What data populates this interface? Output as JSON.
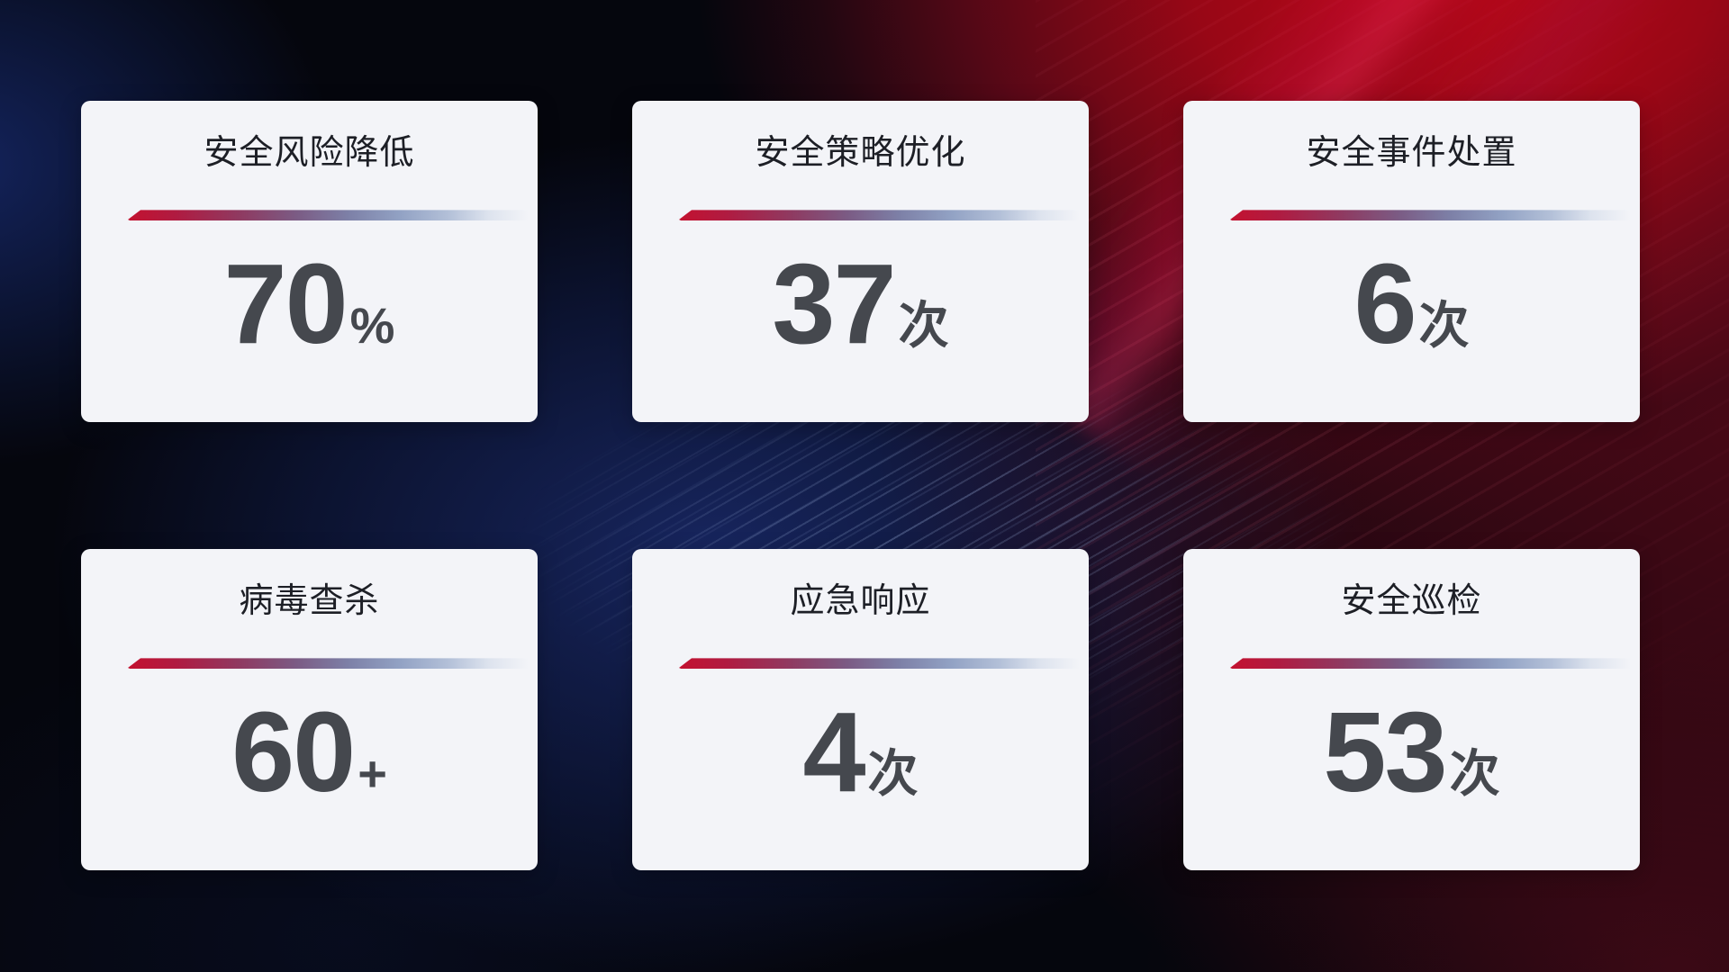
{
  "theme": {
    "background_base": "#05060d",
    "accent_red": "#c31230",
    "accent_blue": "#16255e",
    "card_background": "#f3f4f8",
    "title_color": "#1d1f26",
    "value_color": "#45484e",
    "divider_gradient": [
      "#c31230",
      "#8f3a61",
      "#7d80a7",
      "#b3c0d8",
      "#dde3ee"
    ]
  },
  "cards": [
    {
      "title": "安全风险降低",
      "value": "70",
      "unit": "%"
    },
    {
      "title": "安全策略优化",
      "value": "37",
      "unit": "次"
    },
    {
      "title": "安全事件处置",
      "value": "6",
      "unit": "次"
    },
    {
      "title": "病毒查杀",
      "value": "60",
      "unit": "+"
    },
    {
      "title": "应急响应",
      "value": "4",
      "unit": "次"
    },
    {
      "title": "安全巡检",
      "value": "53",
      "unit": "次"
    }
  ]
}
